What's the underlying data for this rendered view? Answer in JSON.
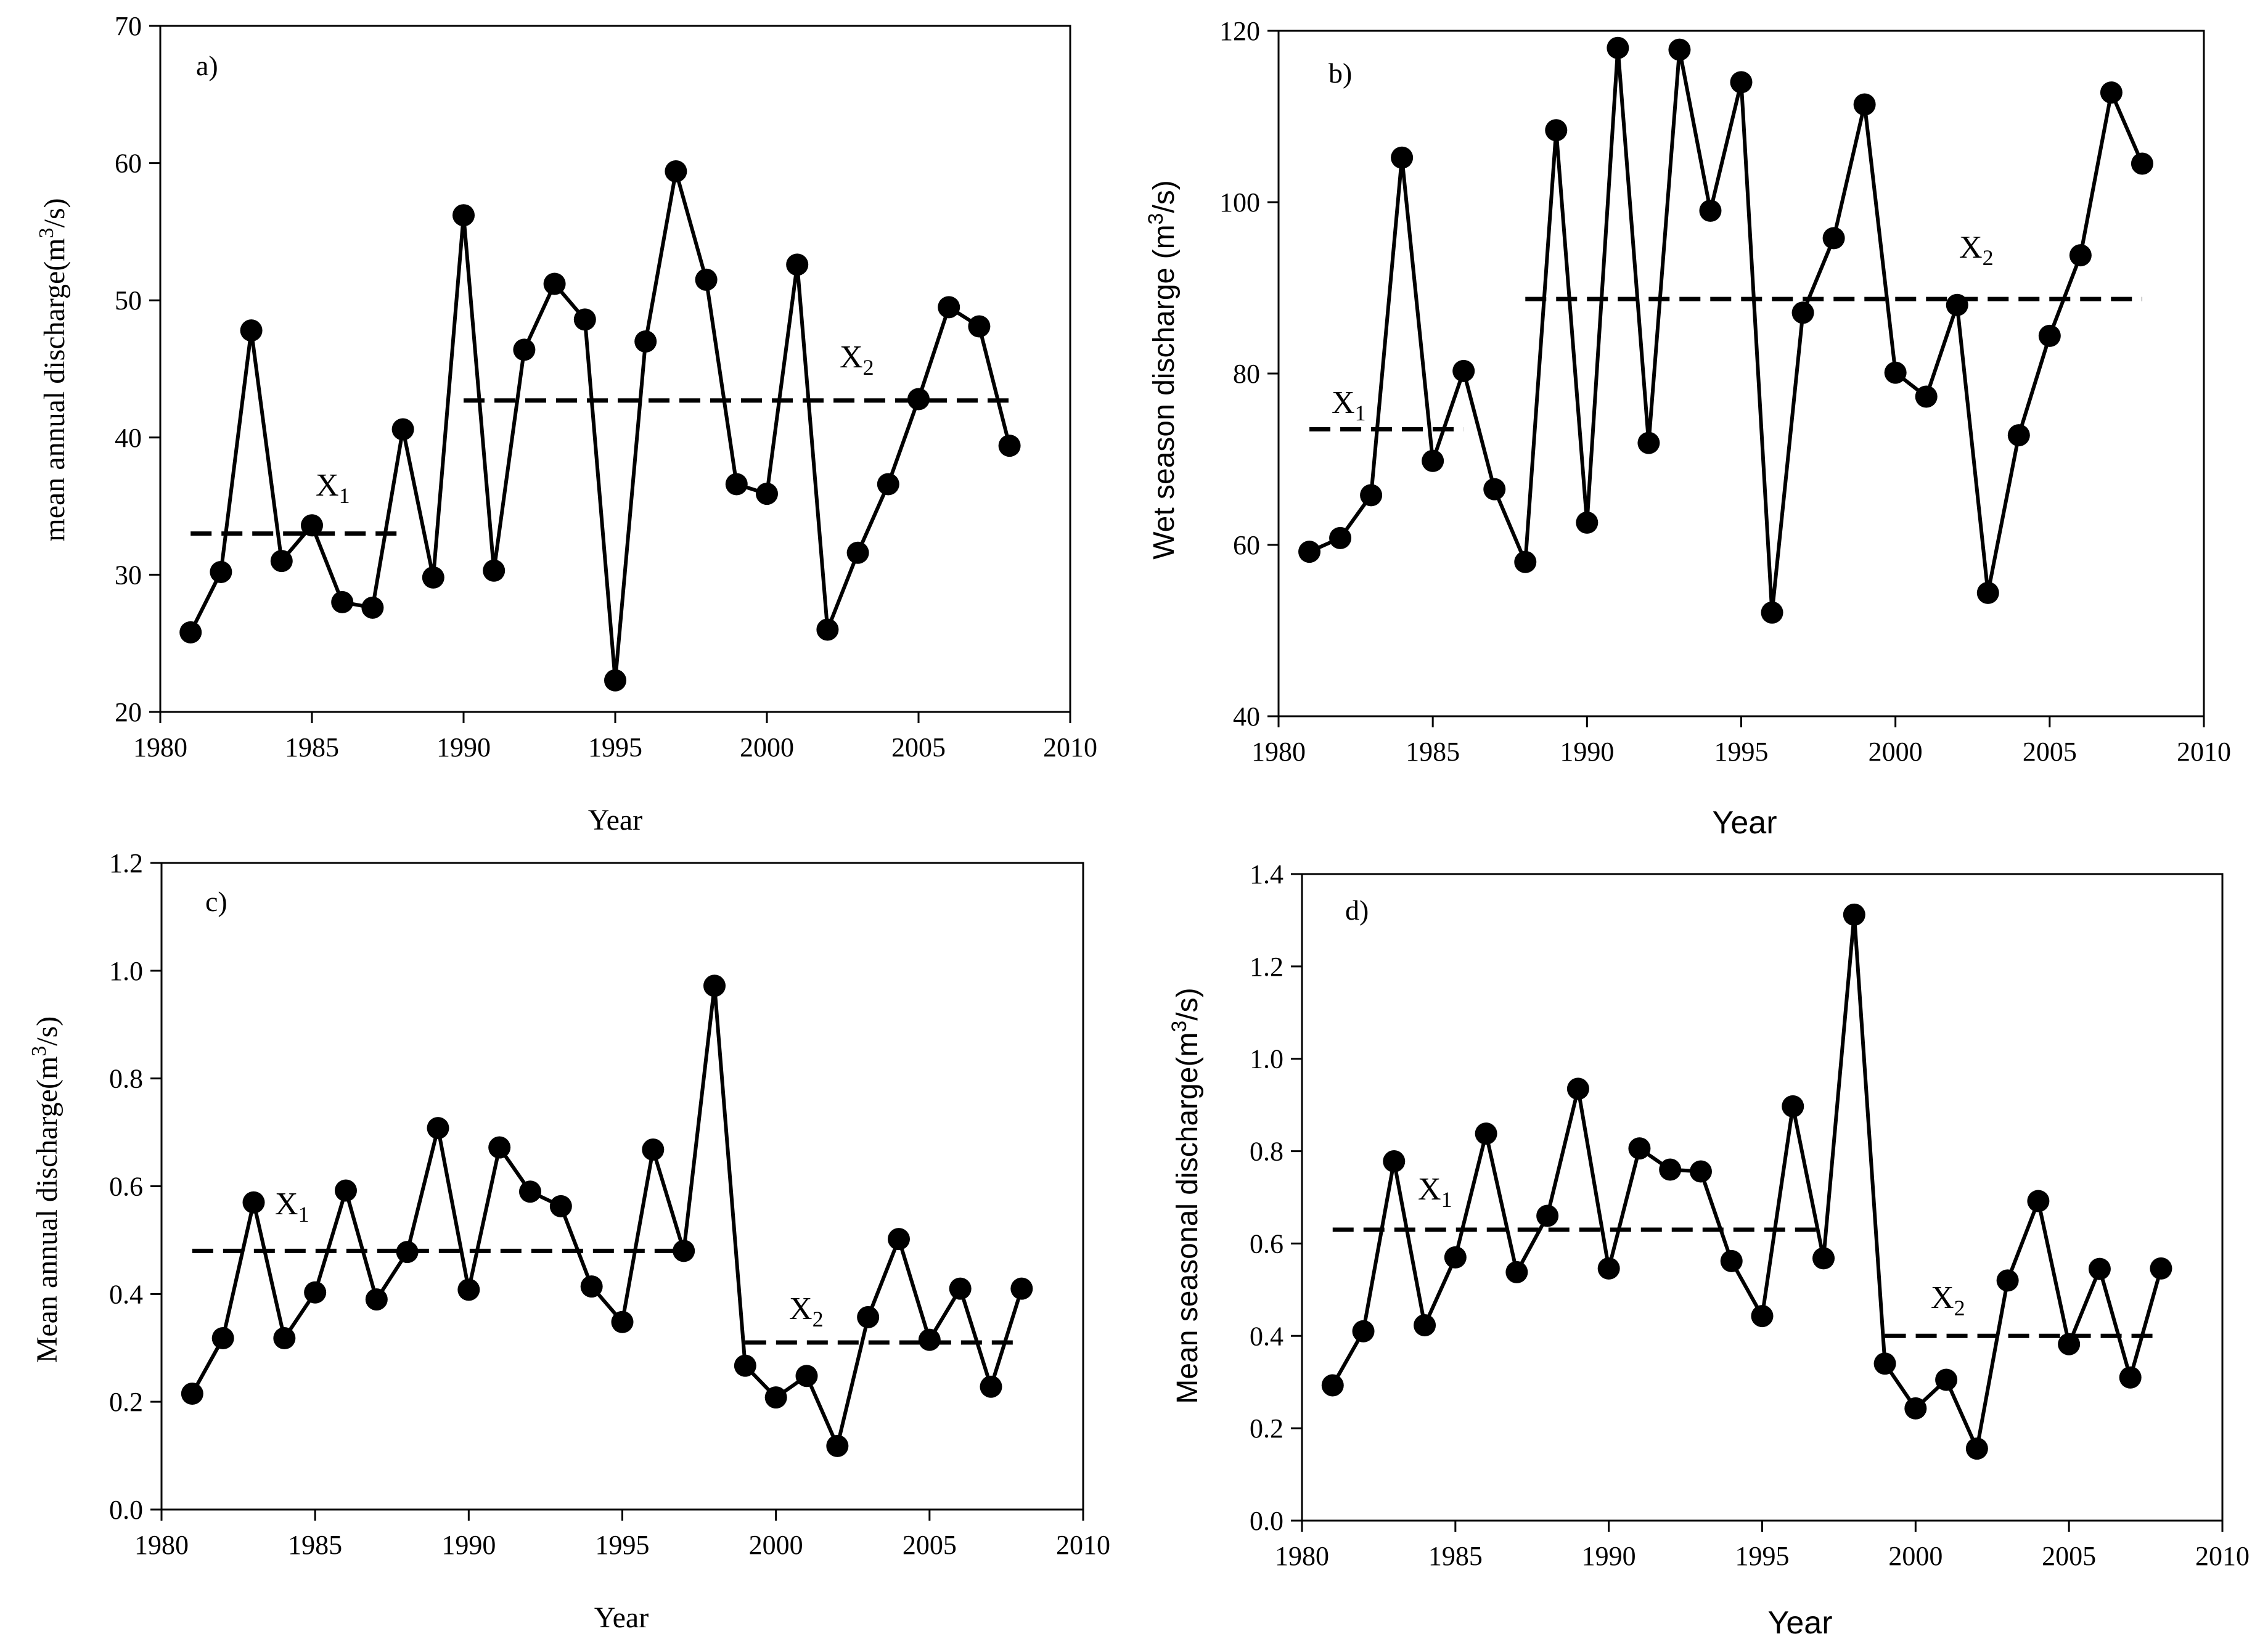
{
  "figure": {
    "panels": [
      {
        "id": "a",
        "panel_label": "a)",
        "xlabel": "Year",
        "ylabel": "mean annual discharge(m",
        "ylabel_sup": "3",
        "ylabel_end": "/s)",
        "x_ticks": [
          "1980",
          "1985",
          "1990",
          "1995",
          "2000",
          "2005",
          "2010"
        ],
        "y_ticks": [
          "20",
          "30",
          "40",
          "50",
          "60",
          "70"
        ],
        "mean_labels": [
          {
            "main": "X",
            "sub": "1"
          },
          {
            "main": "X",
            "sub": "2"
          }
        ]
      },
      {
        "id": "b",
        "panel_label": "b)",
        "xlabel": "Year",
        "ylabel": "Wet season discharge (m",
        "ylabel_sup": "3",
        "ylabel_end": "/s)",
        "x_ticks": [
          "1980",
          "1985",
          "1990",
          "1995",
          "2000",
          "2005",
          "2010"
        ],
        "y_ticks": [
          "40",
          "60",
          "80",
          "100",
          "120"
        ],
        "mean_labels": [
          {
            "main": "X",
            "sub": "1"
          },
          {
            "main": "X",
            "sub": "2"
          }
        ]
      },
      {
        "id": "c",
        "panel_label": "c)",
        "xlabel": "Year",
        "ylabel": "Mean annual discharge(m",
        "ylabel_sup": "3",
        "ylabel_end": "/s)",
        "x_ticks": [
          "1980",
          "1985",
          "1990",
          "1995",
          "2000",
          "2005",
          "2010"
        ],
        "y_ticks": [
          "0.0",
          "0.2",
          "0.4",
          "0.6",
          "0.8",
          "1.0",
          "1.2"
        ],
        "mean_labels": [
          {
            "main": "X",
            "sub": "1"
          },
          {
            "main": "X",
            "sub": "2"
          }
        ]
      },
      {
        "id": "d",
        "panel_label": "d)",
        "xlabel": "Year",
        "ylabel": "Mean seasonal discharge(m",
        "ylabel_sup": "3",
        "ylabel_end": "/s)",
        "x_ticks": [
          "1980",
          "1985",
          "1990",
          "1995",
          "2000",
          "2005",
          "2010"
        ],
        "y_ticks": [
          "0.0",
          "0.2",
          "0.4",
          "0.6",
          "0.8",
          "1.0",
          "1.2",
          "1.4"
        ],
        "mean_labels": [
          {
            "main": "X",
            "sub": "1"
          },
          {
            "main": "X",
            "sub": "2"
          }
        ]
      }
    ]
  },
  "chart_data": [
    {
      "type": "line",
      "title": "a)",
      "xlabel": "Year",
      "ylabel": "mean annual discharge(m3/s)",
      "xlim": [
        1980,
        2010
      ],
      "ylim": [
        20,
        70
      ],
      "x": [
        1981,
        1982,
        1983,
        1984,
        1985,
        1986,
        1987,
        1988,
        1989,
        1990,
        1991,
        1992,
        1993,
        1994,
        1995,
        1996,
        1997,
        1998,
        1999,
        2000,
        2001,
        2002,
        2003,
        2004,
        2005,
        2006,
        2007,
        2008
      ],
      "series": [
        {
          "name": "discharge",
          "values": [
            25.8,
            30.2,
            47.8,
            31.0,
            33.6,
            28.0,
            27.6,
            40.6,
            29.8,
            56.2,
            30.3,
            46.4,
            51.2,
            48.6,
            22.3,
            47.0,
            59.4,
            51.5,
            36.6,
            35.9,
            52.6,
            26.0,
            31.6,
            36.6,
            42.8,
            49.5,
            48.1,
            39.4
          ]
        }
      ],
      "mean_lines": [
        {
          "name": "X1",
          "x_start": 1981,
          "x_end": 1988,
          "value": 33.0
        },
        {
          "name": "X2",
          "x_start": 1990,
          "x_end": 2008,
          "value": 42.7
        }
      ]
    },
    {
      "type": "line",
      "title": "b)",
      "xlabel": "Year",
      "ylabel": "Wet season discharge (m3/s)",
      "xlim": [
        1980,
        2010
      ],
      "ylim": [
        40,
        120
      ],
      "x": [
        1981,
        1982,
        1983,
        1984,
        1985,
        1986,
        1987,
        1988,
        1989,
        1990,
        1991,
        1992,
        1993,
        1994,
        1995,
        1996,
        1997,
        1998,
        1999,
        2000,
        2001,
        2002,
        2003,
        2004,
        2005,
        2006,
        2007,
        2008
      ],
      "series": [
        {
          "name": "discharge",
          "values": [
            59.2,
            60.8,
            65.8,
            105.2,
            69.8,
            80.3,
            66.5,
            58.0,
            108.4,
            62.6,
            118.0,
            71.9,
            117.8,
            99.0,
            114.0,
            52.1,
            87.1,
            95.8,
            111.4,
            80.1,
            77.3,
            88.0,
            54.4,
            72.8,
            84.4,
            93.8,
            112.8,
            104.5
          ]
        }
      ],
      "mean_lines": [
        {
          "name": "X1",
          "x_start": 1981,
          "x_end": 1986,
          "value": 73.5
        },
        {
          "name": "X2",
          "x_start": 1988,
          "x_end": 2008,
          "value": 88.7
        }
      ]
    },
    {
      "type": "line",
      "title": "c)",
      "xlabel": "Year",
      "ylabel": "Mean annual discharge(m3/s)",
      "xlim": [
        1980,
        2010
      ],
      "ylim": [
        0.0,
        1.2
      ],
      "x": [
        1981,
        1982,
        1983,
        1984,
        1985,
        1986,
        1987,
        1988,
        1989,
        1990,
        1991,
        1992,
        1993,
        1994,
        1995,
        1996,
        1997,
        1998,
        1999,
        2000,
        2001,
        2002,
        2003,
        2004,
        2005,
        2006,
        2007,
        2008
      ],
      "series": [
        {
          "name": "discharge",
          "values": [
            0.215,
            0.318,
            0.57,
            0.318,
            0.403,
            0.592,
            0.39,
            0.478,
            0.708,
            0.408,
            0.672,
            0.59,
            0.563,
            0.414,
            0.348,
            0.668,
            0.48,
            0.972,
            0.267,
            0.208,
            0.248,
            0.118,
            0.357,
            0.502,
            0.315,
            0.41,
            0.228,
            0.41
          ]
        }
      ],
      "mean_lines": [
        {
          "name": "X1",
          "x_start": 1981,
          "x_end": 1997,
          "value": 0.48
        },
        {
          "name": "X2",
          "x_start": 1999,
          "x_end": 2008,
          "value": 0.31
        }
      ]
    },
    {
      "type": "line",
      "title": "d)",
      "xlabel": "Year",
      "ylabel": "Mean seasonal discharge(m3/s)",
      "xlim": [
        1980,
        2010
      ],
      "ylim": [
        0.0,
        1.4
      ],
      "x": [
        1981,
        1982,
        1983,
        1984,
        1985,
        1986,
        1987,
        1988,
        1989,
        1990,
        1991,
        1992,
        1993,
        1994,
        1995,
        1996,
        1997,
        1998,
        1999,
        2000,
        2001,
        2002,
        2003,
        2004,
        2005,
        2006,
        2007,
        2008
      ],
      "series": [
        {
          "name": "discharge",
          "values": [
            0.293,
            0.41,
            0.778,
            0.423,
            0.57,
            0.838,
            0.538,
            0.66,
            0.935,
            0.546,
            0.806,
            0.76,
            0.756,
            0.562,
            0.443,
            0.897,
            0.568,
            1.312,
            0.34,
            0.243,
            0.305,
            0.156,
            0.52,
            0.692,
            0.382,
            0.545,
            0.31,
            0.546
          ]
        }
      ],
      "mean_lines": [
        {
          "name": "X1",
          "x_start": 1981,
          "x_end": 1997,
          "value": 0.63
        },
        {
          "name": "X2",
          "x_start": 1999,
          "x_end": 2008,
          "value": 0.4
        }
      ]
    }
  ]
}
